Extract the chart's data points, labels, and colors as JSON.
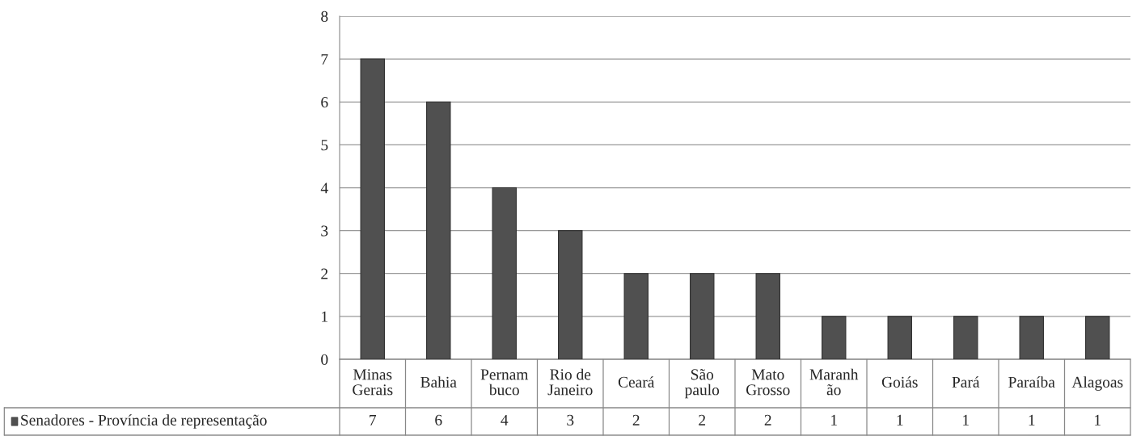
{
  "chart_data": {
    "type": "bar",
    "categories": [
      "Minas\nGerais",
      "Bahia",
      "Pernam\nbuco",
      "Rio de\nJaneiro",
      "Ceará",
      "São\npaulo",
      "Mato\nGrosso",
      "Maranh\não",
      "Goiás",
      "Pará",
      "Paraíba",
      "Alagoas"
    ],
    "series": [
      {
        "name": "Senadores - Província de representação",
        "color": "#505050",
        "values": [
          7,
          6,
          4,
          3,
          2,
          2,
          2,
          1,
          1,
          1,
          1,
          1
        ]
      }
    ],
    "ylim": [
      0,
      8
    ],
    "yticks": [
      0,
      1,
      2,
      3,
      4,
      5,
      6,
      7,
      8
    ],
    "grid": "y",
    "data_labels": true
  }
}
